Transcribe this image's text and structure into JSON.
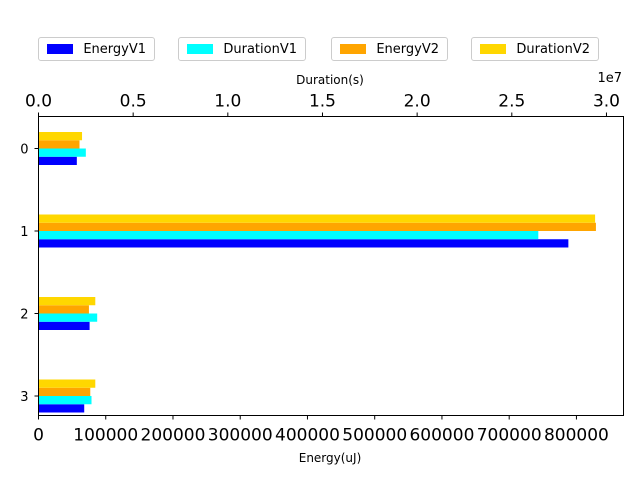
{
  "chart_data": {
    "type": "bar",
    "orientation": "horizontal",
    "categories": [
      "0",
      "1",
      "2",
      "3"
    ],
    "bottom_axis": {
      "label": "Energy(uJ)",
      "ticks": [
        "0",
        "100000",
        "200000",
        "300000",
        "400000",
        "500000",
        "600000",
        "700000",
        "800000"
      ],
      "lim": [
        0,
        870000
      ]
    },
    "top_axis": {
      "label": "Duration(s)",
      "ticks": [
        "0.0",
        "0.5",
        "1.0",
        "1.5",
        "2.0",
        "2.5",
        "3.0"
      ],
      "offset_text": "1e7",
      "lim": [
        0,
        30900000
      ]
    },
    "series": [
      {
        "name": "EnergyV1",
        "axis": "bottom",
        "color": "#0000ff",
        "values": [
          57000,
          788000,
          76000,
          68000
        ]
      },
      {
        "name": "DurationV1",
        "axis": "top",
        "color": "#00ffff",
        "values": [
          2500000,
          26400000,
          3100000,
          2800000
        ]
      },
      {
        "name": "EnergyV2",
        "axis": "bottom",
        "color": "#ffa500",
        "values": [
          61000,
          829000,
          75000,
          77000
        ]
      },
      {
        "name": "DurationV2",
        "axis": "top",
        "color": "#ffd700",
        "values": [
          2300000,
          29400000,
          3000000,
          3000000
        ]
      }
    ],
    "legend_placement": "top",
    "grid": false
  }
}
